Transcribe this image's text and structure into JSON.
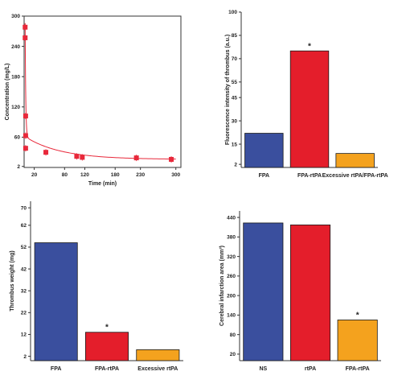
{
  "colors": {
    "blue": "#3a4f9e",
    "red": "#e41e2b",
    "orange": "#f4a21e",
    "pk": "#e8283a",
    "axis": "#333333"
  },
  "chart_data": [
    {
      "type": "scatter",
      "xlabel": "Time (min)",
      "ylabel": "Concentration (mg/L)",
      "xlim": [
        0,
        310
      ],
      "ylim": [
        0,
        300
      ],
      "xticks": [
        20,
        80,
        120,
        180,
        230,
        300
      ],
      "yticks": [
        2,
        60,
        120,
        180,
        240,
        300
      ],
      "points": [
        {
          "x": 2,
          "y": 278
        },
        {
          "x": 2,
          "y": 257
        },
        {
          "x": 3,
          "y": 102
        },
        {
          "x": 3,
          "y": 63
        },
        {
          "x": 3,
          "y": 38
        },
        {
          "x": 43,
          "y": 30
        },
        {
          "x": 104,
          "y": 22
        },
        {
          "x": 115,
          "y": 20
        },
        {
          "x": 222,
          "y": 19
        },
        {
          "x": 291,
          "y": 16
        }
      ]
    },
    {
      "type": "bar",
      "ylabel": "Fluorescence intensity of thrombus (a.u.)",
      "ylim": [
        0,
        100
      ],
      "yticks": [
        2,
        15,
        30,
        45,
        55,
        70,
        85,
        100
      ],
      "categories": [
        "FPA",
        "FPA-rtPA",
        "Excessive rtPA/FPA-rtPA"
      ],
      "values": [
        22,
        75,
        9
      ],
      "bar_colors": [
        "blue",
        "red",
        "orange"
      ],
      "significance": [
        null,
        "*",
        null
      ]
    },
    {
      "type": "bar",
      "ylabel": "Thrombus weight (mg)",
      "ylim": [
        0,
        73
      ],
      "yticks": [
        2,
        12,
        22,
        32,
        42,
        52,
        62,
        70
      ],
      "categories": [
        "FPA",
        "FPA-rtPA",
        "Excessive rtPA"
      ],
      "values": [
        54,
        13,
        5
      ],
      "bar_colors": [
        "blue",
        "red",
        "orange"
      ],
      "significance": [
        null,
        "*",
        null
      ]
    },
    {
      "type": "bar",
      "ylabel": "Cerebral infarction area (mm³)",
      "ylim": [
        0,
        460
      ],
      "yticks": [
        20,
        80,
        140,
        200,
        260,
        320,
        380,
        440
      ],
      "categories": [
        "NS",
        "rtPA",
        "FPA-rtPA"
      ],
      "values": [
        423,
        417,
        125
      ],
      "bar_colors": [
        "blue",
        "red",
        "orange"
      ],
      "significance": [
        null,
        null,
        "*"
      ]
    }
  ]
}
